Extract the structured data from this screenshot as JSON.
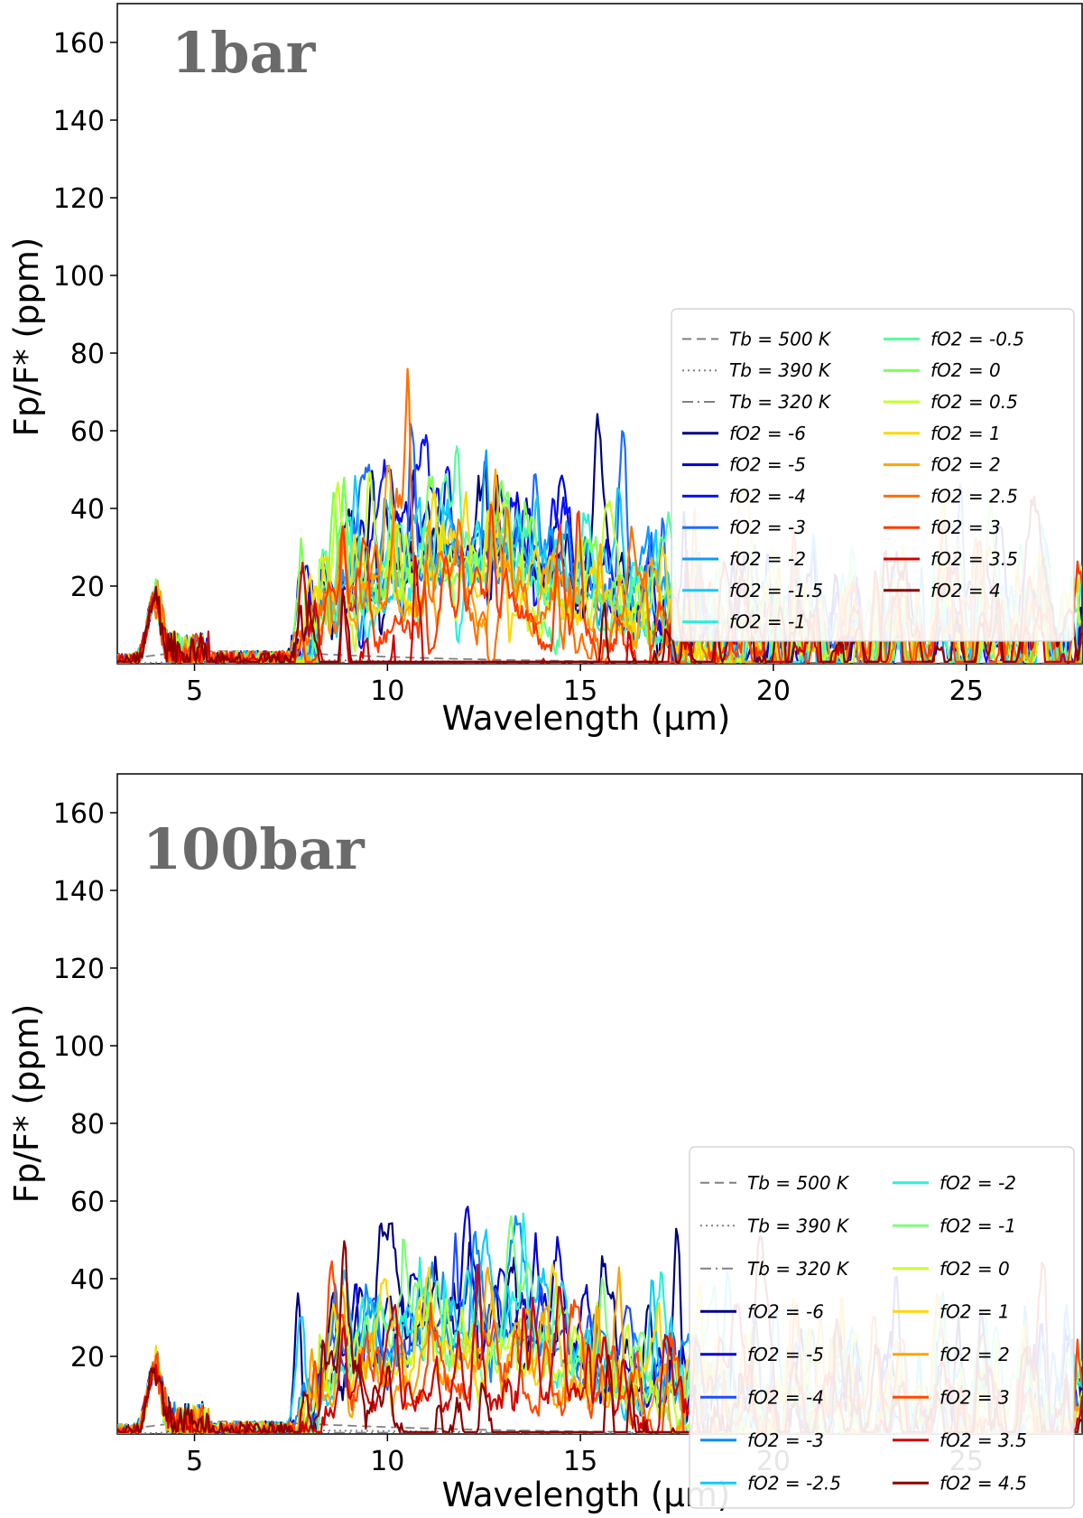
{
  "figure": {
    "xlabel": "Wavelength (μm)",
    "ylabel": "Fp/F* (ppm)"
  },
  "chart_data": [
    {
      "type": "line",
      "title": "1bar",
      "xlabel": "Wavelength (μm)",
      "ylabel": "Fp/F* (ppm)",
      "xlim": [
        3,
        28
      ],
      "ylim": [
        0,
        170
      ],
      "xticks": [
        5,
        10,
        15,
        20,
        25
      ],
      "yticks": [
        20,
        40,
        60,
        80,
        100,
        120,
        140,
        160
      ],
      "reference_curves": [
        {
          "label": "Tb = 500 K",
          "style": "dashed",
          "color": "#808080",
          "temperature": 500
        },
        {
          "label": "Tb = 390 K",
          "style": "dotted",
          "color": "#808080",
          "temperature": 390
        },
        {
          "label": "Tb = 320 K",
          "style": "dashdot",
          "color": "#808080",
          "temperature": 320
        }
      ],
      "series": [
        {
          "name": "fO2 = -6",
          "log_fO2": -6,
          "color": "#00007f"
        },
        {
          "name": "fO2 = -5",
          "log_fO2": -5,
          "color": "#0000d0"
        },
        {
          "name": "fO2 = -4",
          "log_fO2": -4,
          "color": "#0a10ff"
        },
        {
          "name": "fO2 = -3",
          "log_fO2": -3,
          "color": "#1e6cff"
        },
        {
          "name": "fO2 = -2",
          "log_fO2": -2,
          "color": "#0a9cff"
        },
        {
          "name": "fO2 = -1.5",
          "log_fO2": -1.5,
          "color": "#12ccf6"
        },
        {
          "name": "fO2 = -1",
          "log_fO2": -1,
          "color": "#2af0d8"
        },
        {
          "name": "fO2 = -0.5",
          "log_fO2": -0.5,
          "color": "#52ff9e"
        },
        {
          "name": "fO2 = 0",
          "log_fO2": 0,
          "color": "#7dff56"
        },
        {
          "name": "fO2 = 0.5",
          "log_fO2": 0.5,
          "color": "#c8ff28"
        },
        {
          "name": "fO2 = 1",
          "log_fO2": 1,
          "color": "#ffd700"
        },
        {
          "name": "fO2 = 2",
          "log_fO2": 2,
          "color": "#ffa400"
        },
        {
          "name": "fO2 = 2.5",
          "log_fO2": 2.5,
          "color": "#ff7000"
        },
        {
          "name": "fO2 = 3",
          "log_fO2": 3,
          "color": "#ff3a00"
        },
        {
          "name": "fO2 = 3.5",
          "log_fO2": 3.5,
          "color": "#d20000"
        },
        {
          "name": "fO2 = 4",
          "log_fO2": 4,
          "color": "#8b0000"
        }
      ]
    },
    {
      "type": "line",
      "title": "100bar",
      "xlabel": "Wavelength (μm)",
      "ylabel": "Fp/F* (ppm)",
      "xlim": [
        3,
        28
      ],
      "ylim": [
        0,
        170
      ],
      "xticks": [
        5,
        10,
        15,
        20,
        25
      ],
      "yticks": [
        20,
        40,
        60,
        80,
        100,
        120,
        140,
        160
      ],
      "reference_curves": [
        {
          "label": "Tb = 500 K",
          "style": "dashed",
          "color": "#808080",
          "temperature": 500
        },
        {
          "label": "Tb = 390 K",
          "style": "dotted",
          "color": "#808080",
          "temperature": 390
        },
        {
          "label": "Tb = 320 K",
          "style": "dashdot",
          "color": "#808080",
          "temperature": 320
        }
      ],
      "series": [
        {
          "name": "fO2 = -6",
          "log_fO2": -6,
          "color": "#00007f"
        },
        {
          "name": "fO2 = -5",
          "log_fO2": -5,
          "color": "#0000d0"
        },
        {
          "name": "fO2 = -4",
          "log_fO2": -4,
          "color": "#1e4cff"
        },
        {
          "name": "fO2 = -3",
          "log_fO2": -3,
          "color": "#0a8cff"
        },
        {
          "name": "fO2 = -2.5",
          "log_fO2": -2.5,
          "color": "#12ccf6"
        },
        {
          "name": "fO2 = -2",
          "log_fO2": -2,
          "color": "#2af0d8"
        },
        {
          "name": "fO2 = -1",
          "log_fO2": -1,
          "color": "#7dff7a"
        },
        {
          "name": "fO2 = 0",
          "log_fO2": 0,
          "color": "#c8ff28"
        },
        {
          "name": "fO2 = 1",
          "log_fO2": 1,
          "color": "#ffd700"
        },
        {
          "name": "fO2 = 2",
          "log_fO2": 2,
          "color": "#ffa400"
        },
        {
          "name": "fO2 = 3",
          "log_fO2": 3,
          "color": "#ff4a00"
        },
        {
          "name": "fO2 = 3.5",
          "log_fO2": 3.5,
          "color": "#d20000"
        },
        {
          "name": "fO2 = 4.5",
          "log_fO2": 4.5,
          "color": "#8b0000"
        }
      ]
    }
  ]
}
